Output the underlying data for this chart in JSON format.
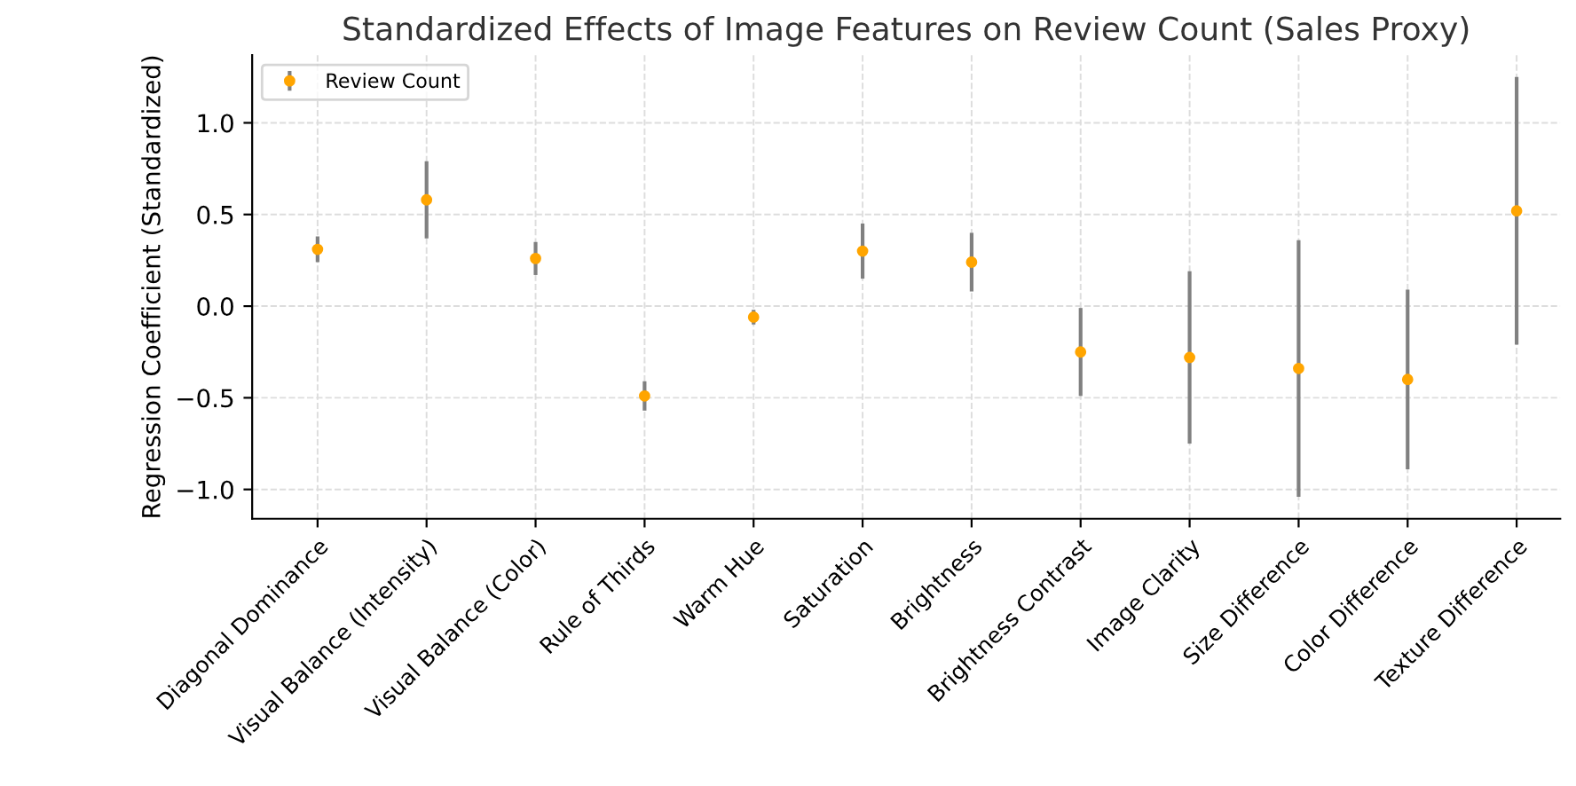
{
  "chart_data": {
    "type": "scatter",
    "title": "Standardized Effects of Image Features on Review Count (Sales Proxy)",
    "ylabel": "Regression Coefficient (Standardized)",
    "categories": [
      "Diagonal Dominance",
      "Visual Balance (Intensity)",
      "Visual Balance (Color)",
      "Rule of Thirds",
      "Warm Hue",
      "Saturation",
      "Brightness",
      "Brightness Contrast",
      "Image Clarity",
      "Size Difference",
      "Color Difference",
      "Texture Difference"
    ],
    "series": [
      {
        "name": "Review Count",
        "color": "#ffa500",
        "values": [
          0.31,
          0.58,
          0.26,
          -0.49,
          -0.06,
          0.3,
          0.24,
          -0.25,
          -0.28,
          -0.34,
          -0.4,
          0.52
        ],
        "errors": [
          0.07,
          0.21,
          0.09,
          0.08,
          0.04,
          0.15,
          0.16,
          0.24,
          0.47,
          0.7,
          0.49,
          0.73
        ]
      }
    ],
    "ylim": [
      -1.16,
      1.37
    ],
    "yticks": [
      {
        "value": -1.0,
        "label": "−1.0"
      },
      {
        "value": -0.5,
        "label": "−0.5"
      },
      {
        "value": 0.0,
        "label": "0.0"
      },
      {
        "value": 0.5,
        "label": "0.5"
      },
      {
        "value": 1.0,
        "label": "1.0"
      }
    ],
    "grid": true,
    "legend": "top left",
    "marker": "circle"
  }
}
